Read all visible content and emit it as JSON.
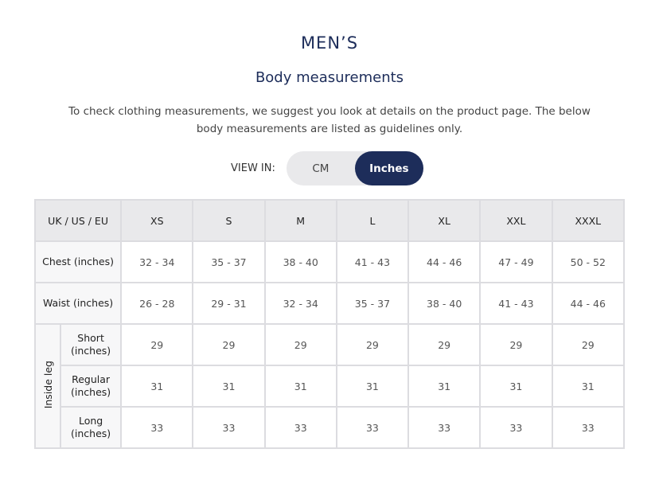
{
  "title": "MEN’S",
  "subtitle": "Body measurements",
  "description": "To check clothing measurements, we suggest you look at details on the product page. The below body measurements are listed as guidelines only.",
  "view_in": {
    "label": "VIEW IN:",
    "options": [
      "CM",
      "Inches"
    ],
    "selected": "Inches"
  },
  "table": {
    "header": [
      "UK / US / EU",
      "XS",
      "S",
      "M",
      "L",
      "XL",
      "XXL",
      "XXXL"
    ],
    "rows": [
      {
        "label": "Chest (inches)",
        "values": [
          "32 - 34",
          "35 - 37",
          "38 - 40",
          "41 - 43",
          "44 - 46",
          "47 - 49",
          "50 - 52"
        ]
      },
      {
        "label": "Waist (inches)",
        "values": [
          "26 - 28",
          "29 - 31",
          "32 - 34",
          "35 - 37",
          "38 - 40",
          "41 - 43",
          "44 - 46"
        ]
      }
    ],
    "inside_leg": {
      "label": "Inside leg",
      "rows": [
        {
          "label": "Short (inches)",
          "values": [
            "29",
            "29",
            "29",
            "29",
            "29",
            "29",
            "29"
          ]
        },
        {
          "label": "Regular (inches)",
          "values": [
            "31",
            "31",
            "31",
            "31",
            "31",
            "31",
            "31"
          ]
        },
        {
          "label": "Long (inches)",
          "values": [
            "33",
            "33",
            "33",
            "33",
            "33",
            "33",
            "33"
          ]
        }
      ]
    }
  },
  "colors": {
    "navy": "#1d2d5a",
    "header_bg": "#e9e9eb"
  }
}
